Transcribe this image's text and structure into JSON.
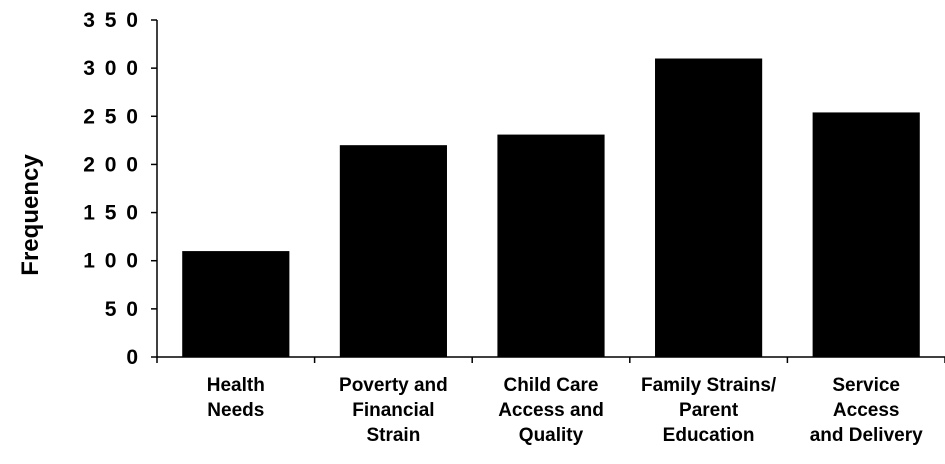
{
  "chart_data": {
    "type": "bar",
    "title": "",
    "xlabel": "",
    "ylabel": "Frequency",
    "ylim": [
      0,
      350
    ],
    "yticks": [
      "0",
      "5 0",
      "1 0 0",
      "1 5 0",
      "2 0 0",
      "2 5 0",
      "3 0 0",
      "3 5 0"
    ],
    "categories": [
      [
        "Health",
        "Needs"
      ],
      [
        "Poverty and",
        "Financial",
        "Strain"
      ],
      [
        "Child Care",
        "Access and",
        "Quality"
      ],
      [
        "Family Strains/",
        "Parent",
        "Education"
      ],
      [
        "Service",
        "Access",
        "and Delivery"
      ]
    ],
    "values": [
      110,
      220,
      231,
      310,
      254
    ],
    "grid": false,
    "bar_color": "#000000"
  }
}
